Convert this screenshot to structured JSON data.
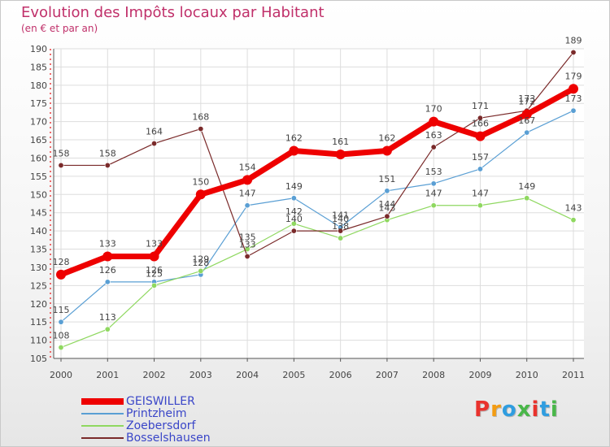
{
  "title": "Evolution des Impôts locaux par Habitant",
  "subtitle": "(en € et par an)",
  "logo": {
    "text": "Proxiti",
    "letters": [
      {
        "ch": "P",
        "color": "#e9322d"
      },
      {
        "ch": "r",
        "color": "#f39c12"
      },
      {
        "ch": "o",
        "color": "#2f9de0"
      },
      {
        "ch": "x",
        "color": "#49b749"
      },
      {
        "ch": "i",
        "color": "#e9322d"
      },
      {
        "ch": "t",
        "color": "#2f9de0"
      },
      {
        "ch": "i",
        "color": "#49b749"
      }
    ]
  },
  "chart_data": {
    "type": "line",
    "title": "Evolution des Impôts locaux par Habitant",
    "subtitle": "(en € et par an)",
    "xlabel": "",
    "ylabel": "",
    "categories": [
      "2000",
      "2001",
      "2002",
      "2003",
      "2004",
      "2005",
      "2006",
      "2007",
      "2008",
      "2009",
      "2010",
      "2011"
    ],
    "ylim": [
      105,
      190
    ],
    "yticks": [
      105,
      110,
      115,
      120,
      125,
      130,
      135,
      140,
      145,
      150,
      155,
      160,
      165,
      170,
      175,
      180,
      185,
      190
    ],
    "grid": true,
    "legend_position": "bottom-left",
    "series": [
      {
        "name": "GEISWILLER",
        "color": "#ee0000",
        "values": [
          128,
          133,
          133,
          150,
          154,
          162,
          161,
          162,
          170,
          166,
          172,
          179
        ]
      },
      {
        "name": "Printzheim",
        "color": "#5a9fd4",
        "values": [
          115,
          126,
          126,
          128,
          147,
          149,
          141,
          151,
          153,
          157,
          167,
          173
        ]
      },
      {
        "name": "Zoebersdorf",
        "color": "#8fd860",
        "values": [
          108,
          113,
          125,
          129,
          135,
          142,
          138,
          143,
          147,
          147,
          149,
          143
        ]
      },
      {
        "name": "Bosselshausen",
        "color": "#7a2a2a",
        "values": [
          158,
          158,
          164,
          168,
          133,
          140,
          140,
          144,
          163,
          171,
          173,
          189
        ]
      }
    ]
  }
}
